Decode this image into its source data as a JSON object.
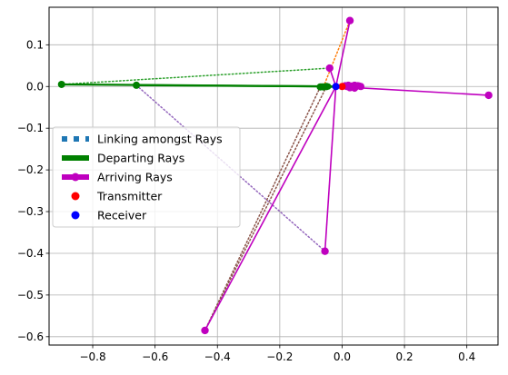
{
  "chart_data": {
    "type": "scatter",
    "xlim": [
      -0.94,
      0.5
    ],
    "ylim": [
      -0.62,
      0.19
    ],
    "x_ticks": [
      -0.8,
      -0.6,
      -0.4,
      -0.2,
      0.0,
      0.2,
      0.4
    ],
    "y_ticks": [
      0.1,
      0.0,
      -0.1,
      -0.2,
      -0.3,
      -0.4,
      -0.5,
      -0.6
    ],
    "x_tick_labels": [
      "−0.8",
      "−0.6",
      "−0.4",
      "−0.2",
      "0.0",
      "0.2",
      "0.4"
    ],
    "y_tick_labels": [
      "0.1",
      "0.0",
      "−0.1",
      "−0.2",
      "−0.3",
      "−0.4",
      "−0.5",
      "−0.6"
    ],
    "grid": true,
    "legend_placement": "center-left",
    "colors": {
      "linking": "#1f77b4",
      "departing": "#008000",
      "arriving": "#bf00bf",
      "transmitter": "#ff0000",
      "receiver": "#0000ff",
      "dotted_orange": "#ff7f0e",
      "dotted_brown": "#8c564b",
      "dotted_purple": "#9467bd",
      "dotted_green": "#2ca02c"
    },
    "legend": [
      {
        "label": "Linking amongst Rays",
        "style": "dotted-square",
        "color": "#1f77b4"
      },
      {
        "label": "Departing Rays",
        "style": "thick-line",
        "color": "#008000"
      },
      {
        "label": "Arriving Rays",
        "style": "thick-line-marker",
        "color": "#bf00bf"
      },
      {
        "label": "Transmitter",
        "style": "point",
        "color": "#ff0000"
      },
      {
        "label": "Receiver",
        "style": "point",
        "color": "#0000ff"
      }
    ],
    "transmitter": {
      "x": 0.0,
      "y": 0.0
    },
    "receiver": {
      "x": -0.02,
      "y": 0.0
    },
    "departing_rays": [
      {
        "from": [
          0.0,
          0.0
        ],
        "to": [
          -0.9,
          0.005
        ]
      },
      {
        "from": [
          0.0,
          0.0
        ],
        "to": [
          -0.66,
          0.003
        ]
      },
      {
        "from": [
          0.0,
          0.0
        ],
        "to": [
          -0.07,
          -0.001
        ]
      },
      {
        "from": [
          0.0,
          0.0
        ],
        "to": [
          -0.06,
          -0.001
        ]
      },
      {
        "from": [
          0.0,
          0.0
        ],
        "to": [
          -0.05,
          0.0
        ]
      }
    ],
    "arriving_rays": [
      {
        "from": [
          -0.02,
          0.0
        ],
        "to": [
          0.025,
          0.158
        ]
      },
      {
        "from": [
          -0.02,
          0.0
        ],
        "to": [
          -0.44,
          -0.585
        ]
      },
      {
        "from": [
          -0.02,
          0.0
        ],
        "to": [
          -0.055,
          -0.395
        ]
      },
      {
        "from": [
          -0.02,
          0.0
        ],
        "to": [
          0.47,
          -0.021
        ]
      },
      {
        "from": [
          -0.02,
          0.0
        ],
        "to": [
          -0.04,
          0.044
        ]
      }
    ],
    "linking_rays": [
      {
        "from": [
          -0.9,
          0.005
        ],
        "to": [
          -0.04,
          0.044
        ],
        "color": "#2ca02c"
      },
      {
        "from": [
          -0.66,
          0.003
        ],
        "to": [
          -0.055,
          -0.395
        ],
        "color": "#9467bd"
      },
      {
        "from": [
          -0.07,
          -0.001
        ],
        "to": [
          -0.44,
          -0.585
        ],
        "color": "#8c564b"
      },
      {
        "from": [
          -0.06,
          -0.001
        ],
        "to": [
          0.025,
          0.158
        ],
        "color": "#ff7f0e"
      },
      {
        "from": [
          -0.05,
          0.0
        ],
        "to": [
          -0.44,
          -0.585
        ],
        "color": "#8c564b"
      }
    ],
    "arrival_cluster": [
      [
        0.01,
        0.002
      ],
      [
        0.02,
        0.003
      ],
      [
        0.03,
        0.001
      ],
      [
        0.035,
        -0.002
      ],
      [
        0.04,
        0.003
      ],
      [
        0.045,
        0.0
      ],
      [
        0.05,
        0.002
      ],
      [
        0.055,
        0.001
      ],
      [
        0.025,
        -0.003
      ],
      [
        0.015,
        0.0
      ],
      [
        0.04,
        -0.004
      ],
      [
        0.06,
        0.0
      ]
    ],
    "departure_cluster": [
      [
        -0.07,
        -0.001
      ],
      [
        -0.065,
        0.0
      ],
      [
        -0.06,
        -0.001
      ],
      [
        -0.055,
        0.0
      ],
      [
        -0.05,
        -0.001
      ],
      [
        -0.045,
        0.0
      ]
    ]
  }
}
